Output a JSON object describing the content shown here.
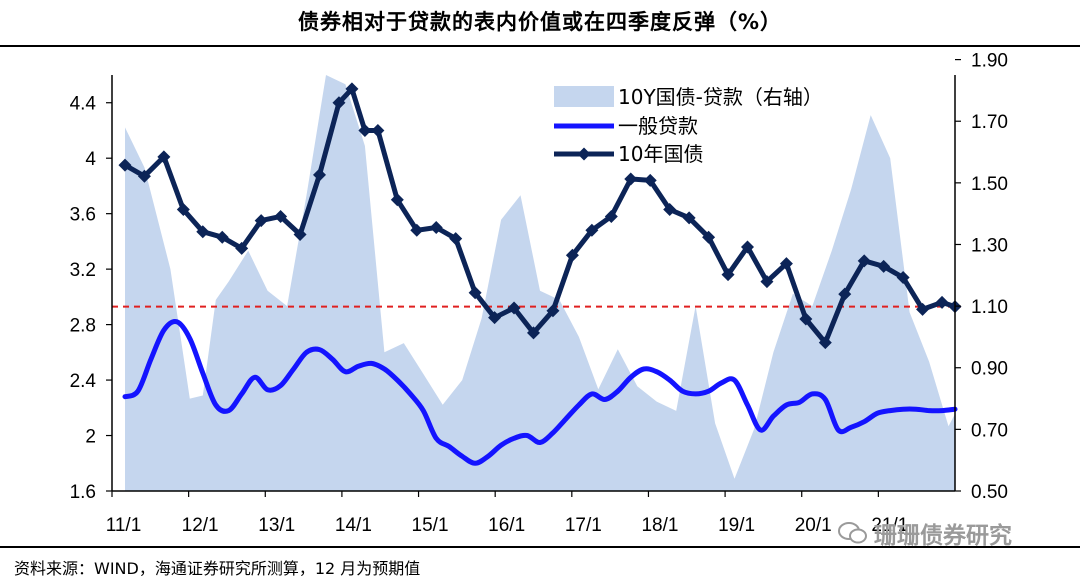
{
  "title": "债券相对于贷款的表内价值或在四季度反弹（%）",
  "source": "资料来源：WIND，海通证券研究所测算，12 月为预期值",
  "watermark": "珊珊债券研究",
  "chart_data": {
    "type": "line",
    "title": "债券相对于贷款的表内价值或在四季度反弹（%）",
    "x_tick_labels": [
      "11/1",
      "12/1",
      "13/1",
      "14/1",
      "15/1",
      "16/1",
      "17/1",
      "18/1",
      "19/1",
      "20/1",
      "21/1"
    ],
    "x_range": [
      0,
      130
    ],
    "y_left": {
      "range": [
        1.6,
        4.6
      ],
      "ticks": [
        1.6,
        2,
        2.4,
        2.8,
        3.2,
        3.6,
        4,
        4.4
      ],
      "tick_labels": [
        "1.6",
        "2",
        "2.4",
        "2.8",
        "3.2",
        "3.6",
        "4",
        "4.4"
      ]
    },
    "y_right": {
      "range": [
        0.5,
        1.85
      ],
      "ticks": [
        0.5,
        0.7,
        0.9,
        1.1,
        1.3,
        1.5,
        1.7,
        1.9
      ],
      "tick_labels": [
        "0.50",
        "0.70",
        "0.90",
        "1.10",
        "1.30",
        "1.50",
        "1.70",
        "1.90"
      ]
    },
    "reference_line": {
      "axis": "left",
      "value": 2.93,
      "color": "#e02020",
      "style": "dashed"
    },
    "legend": [
      {
        "label": "10Y国债-贷款（右轴）",
        "type": "area"
      },
      {
        "label": "一般贷款",
        "type": "line"
      },
      {
        "label": "10年国债",
        "type": "line-marker"
      }
    ],
    "series": [
      {
        "name": "10Y国债-贷款（右轴）",
        "type": "area",
        "axis": "right",
        "color": "#c5d6ee",
        "x": [
          2,
          5,
          9,
          12,
          14,
          16,
          18,
          21,
          24,
          27,
          30,
          33,
          36,
          39,
          42,
          45,
          48,
          51,
          54,
          57,
          60,
          63,
          66,
          69,
          72,
          75,
          78,
          81,
          84,
          87,
          90,
          93,
          96,
          99,
          102,
          105,
          108,
          111,
          114,
          117,
          120,
          123,
          126,
          129,
          130
        ],
        "values": [
          1.68,
          1.55,
          1.22,
          0.8,
          0.81,
          1.12,
          1.18,
          1.28,
          1.15,
          1.1,
          1.46,
          1.85,
          1.82,
          1.62,
          0.95,
          0.98,
          0.88,
          0.78,
          0.86,
          1.06,
          1.38,
          1.46,
          1.15,
          1.12,
          1.0,
          0.83,
          0.96,
          0.84,
          0.79,
          0.76,
          1.1,
          0.72,
          0.54,
          0.7,
          0.95,
          1.14,
          1.1,
          1.28,
          1.48,
          1.72,
          1.58,
          1.08,
          0.92,
          0.71,
          0.75
        ]
      },
      {
        "name": "一般贷款",
        "type": "line",
        "axis": "left",
        "color": "#1414ff",
        "x": [
          2,
          4,
          6,
          8,
          10,
          12,
          14,
          16,
          18,
          20,
          22,
          24,
          26,
          28,
          30,
          32,
          34,
          36,
          38,
          40,
          42,
          44,
          46,
          48,
          50,
          52,
          54,
          56,
          58,
          60,
          62,
          64,
          66,
          68,
          70,
          72,
          74,
          76,
          78,
          80,
          82,
          84,
          86,
          88,
          90,
          92,
          94,
          96,
          98,
          100,
          102,
          104,
          106,
          108,
          110,
          112,
          114,
          116,
          118,
          120,
          122,
          124,
          126,
          128,
          130
        ],
        "values": [
          2.28,
          2.32,
          2.55,
          2.76,
          2.82,
          2.7,
          2.45,
          2.22,
          2.18,
          2.3,
          2.42,
          2.33,
          2.36,
          2.48,
          2.6,
          2.62,
          2.55,
          2.46,
          2.5,
          2.52,
          2.48,
          2.4,
          2.3,
          2.18,
          1.98,
          1.92,
          1.85,
          1.8,
          1.85,
          1.93,
          1.98,
          2.0,
          1.95,
          2.02,
          2.12,
          2.22,
          2.3,
          2.26,
          2.32,
          2.42,
          2.48,
          2.46,
          2.4,
          2.32,
          2.3,
          2.32,
          2.38,
          2.4,
          2.22,
          2.04,
          2.14,
          2.22,
          2.24,
          2.3,
          2.26,
          2.04,
          2.06,
          2.1,
          2.16,
          2.18,
          2.19,
          2.19,
          2.18,
          2.18,
          2.19
        ]
      },
      {
        "name": "10年国债",
        "type": "line",
        "axis": "left",
        "color": "#0c2457",
        "x": [
          2,
          5,
          8,
          11,
          14,
          17,
          20,
          23,
          26,
          29,
          32,
          35,
          37,
          39,
          41,
          44,
          47,
          50,
          53,
          56,
          59,
          62,
          65,
          68,
          71,
          74,
          77,
          80,
          83,
          86,
          89,
          92,
          95,
          98,
          101,
          104,
          107,
          110,
          113,
          116,
          119,
          122,
          125,
          128,
          130
        ],
        "values": [
          3.95,
          3.87,
          4.01,
          3.63,
          3.47,
          3.43,
          3.35,
          3.55,
          3.58,
          3.45,
          3.88,
          4.4,
          4.5,
          4.2,
          4.2,
          3.7,
          3.48,
          3.5,
          3.42,
          3.03,
          2.85,
          2.92,
          2.74,
          2.9,
          3.3,
          3.48,
          3.58,
          3.85,
          3.84,
          3.63,
          3.57,
          3.43,
          3.16,
          3.36,
          3.11,
          3.24,
          2.84,
          2.67,
          3.02,
          3.26,
          3.22,
          3.14,
          2.91,
          2.96,
          2.93
        ]
      }
    ]
  }
}
